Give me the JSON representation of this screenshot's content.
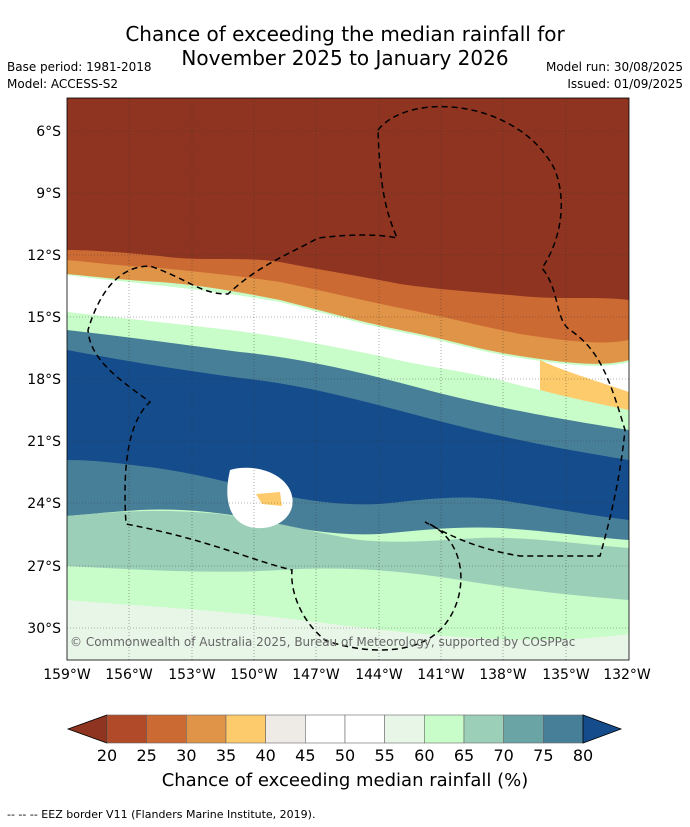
{
  "title_line1": "Chance of exceeding the median rainfall for",
  "title_line2": "November 2025 to January 2026",
  "base_period": "Base period: 1981-2018",
  "model": "Model: ACCESS-S2",
  "model_run": "Model run: 30/08/2025",
  "issued": "Issued: 01/09/2025",
  "credit": "© Commonwealth of Australia 2025, Bureau of Meteorology, supported by COSPPac",
  "lat_labels": [
    "6°S",
    "9°S",
    "12°S",
    "15°S",
    "18°S",
    "21°S",
    "24°S",
    "27°S",
    "30°S"
  ],
  "lon_labels": [
    "159°W",
    "156°W",
    "153°W",
    "150°W",
    "147°W",
    "144°W",
    "141°W",
    "138°W",
    "135°W",
    "132°W"
  ],
  "colorbar": {
    "label": "Chance of exceeding median rainfall (%)",
    "ticks": [
      "20",
      "25",
      "30",
      "35",
      "40",
      "45",
      "50",
      "55",
      "60",
      "65",
      "70",
      "75",
      "80"
    ],
    "colors": [
      "#8e3420",
      "#b04a28",
      "#cc6a34",
      "#e09448",
      "#fecb6c",
      "#eeeae6",
      "#ffffff",
      "#ffffff",
      "#e8f6e8",
      "#c8fcc8",
      "#9ccfb8",
      "#6aa4a4",
      "#487f98",
      "#144c8c"
    ]
  },
  "footer": "--  --  -- EEZ border V11 (Flanders Marine Institute, 2019)."
}
